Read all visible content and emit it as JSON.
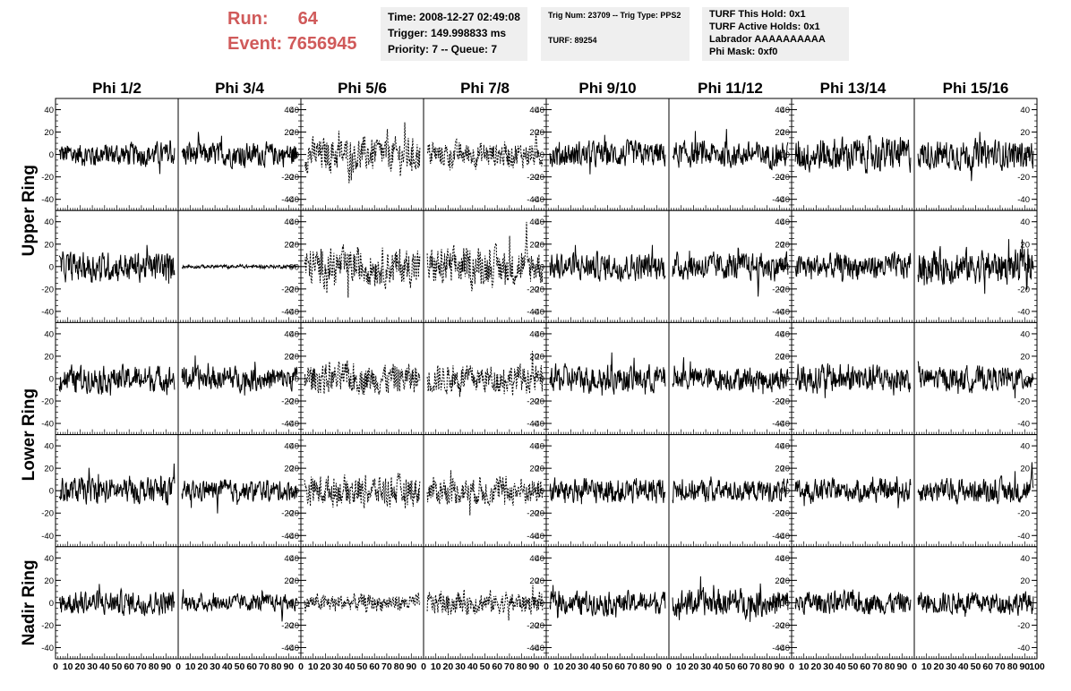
{
  "header": {
    "run_label": "Run:",
    "run_value": "64",
    "event_label": "Event:",
    "event_value": "7656945",
    "box1": {
      "time": "Time: 2008-12-27 02:49:08",
      "trigger": "Trigger: 149.998833 ms",
      "priority": "Priority: 7 -- Queue: 7"
    },
    "box2": {
      "trig": "Trig Num: 23709 -- Trig Type: PPS2",
      "turf": "TURF: 89254"
    },
    "box3": {
      "this_hold": "TURF This Hold: 0x1",
      "active_holds": "TURF Active Holds: 0x1",
      "labrador": "Labrador AAAAAAAAAA",
      "phi_mask": "Phi Mask: 0xf0"
    }
  },
  "colors": {
    "run_text": "#d05a5a",
    "box_bg": "#efefef",
    "trace": "#000000"
  },
  "chart_data": {
    "type": "line",
    "columns": [
      "Phi 1/2",
      "Phi 3/4",
      "Phi 5/6",
      "Phi 7/8",
      "Phi 9/10",
      "Phi 11/12",
      "Phi 13/14",
      "Phi 15/16"
    ],
    "rows": [
      "Upper Ring",
      "Lower Ring",
      "Nadir Ring"
    ],
    "panel_rows": 5,
    "ylim": [
      -50,
      50
    ],
    "xlim": [
      0,
      100
    ],
    "yticks": [
      "40",
      "20",
      "0",
      "-20",
      "-40"
    ],
    "xtick_labels": [
      "0",
      "10",
      "20",
      "30",
      "40",
      "50",
      "60",
      "70",
      "80",
      "90",
      "100"
    ],
    "axis_sides": [
      "left",
      "right",
      "left",
      "right",
      "left",
      "right",
      "left",
      "right"
    ],
    "panels": [
      {
        "row": 0,
        "col": 0,
        "amplitude": 14,
        "style": "solid"
      },
      {
        "row": 0,
        "col": 1,
        "amplitude": 14,
        "style": "solid"
      },
      {
        "row": 0,
        "col": 2,
        "amplitude": 20,
        "style": "dashed"
      },
      {
        "row": 0,
        "col": 3,
        "amplitude": 15,
        "style": "dashed"
      },
      {
        "row": 0,
        "col": 4,
        "amplitude": 15,
        "style": "solid"
      },
      {
        "row": 0,
        "col": 5,
        "amplitude": 15,
        "style": "solid"
      },
      {
        "row": 0,
        "col": 6,
        "amplitude": 20,
        "style": "solid"
      },
      {
        "row": 0,
        "col": 7,
        "amplitude": 17,
        "style": "solid"
      },
      {
        "row": 1,
        "col": 0,
        "amplitude": 17,
        "style": "solid"
      },
      {
        "row": 1,
        "col": 1,
        "amplitude": 2,
        "style": "solid"
      },
      {
        "row": 1,
        "col": 2,
        "amplitude": 22,
        "style": "dashed"
      },
      {
        "row": 1,
        "col": 3,
        "amplitude": 22,
        "style": "dashed"
      },
      {
        "row": 1,
        "col": 4,
        "amplitude": 16,
        "style": "solid"
      },
      {
        "row": 1,
        "col": 5,
        "amplitude": 16,
        "style": "solid"
      },
      {
        "row": 1,
        "col": 6,
        "amplitude": 15,
        "style": "solid"
      },
      {
        "row": 1,
        "col": 7,
        "amplitude": 20,
        "style": "solid"
      },
      {
        "row": 2,
        "col": 0,
        "amplitude": 15,
        "style": "solid"
      },
      {
        "row": 2,
        "col": 1,
        "amplitude": 14,
        "style": "solid"
      },
      {
        "row": 2,
        "col": 2,
        "amplitude": 18,
        "style": "dashed"
      },
      {
        "row": 2,
        "col": 3,
        "amplitude": 17,
        "style": "dashed"
      },
      {
        "row": 2,
        "col": 4,
        "amplitude": 16,
        "style": "solid"
      },
      {
        "row": 2,
        "col": 5,
        "amplitude": 14,
        "style": "solid"
      },
      {
        "row": 2,
        "col": 6,
        "amplitude": 17,
        "style": "solid"
      },
      {
        "row": 2,
        "col": 7,
        "amplitude": 14,
        "style": "solid"
      },
      {
        "row": 3,
        "col": 0,
        "amplitude": 15,
        "style": "solid"
      },
      {
        "row": 3,
        "col": 1,
        "amplitude": 12,
        "style": "solid"
      },
      {
        "row": 3,
        "col": 2,
        "amplitude": 18,
        "style": "dashed"
      },
      {
        "row": 3,
        "col": 3,
        "amplitude": 16,
        "style": "dashed"
      },
      {
        "row": 3,
        "col": 4,
        "amplitude": 15,
        "style": "solid"
      },
      {
        "row": 3,
        "col": 5,
        "amplitude": 13,
        "style": "solid"
      },
      {
        "row": 3,
        "col": 6,
        "amplitude": 13,
        "style": "solid"
      },
      {
        "row": 3,
        "col": 7,
        "amplitude": 14,
        "style": "solid"
      },
      {
        "row": 4,
        "col": 0,
        "amplitude": 14,
        "style": "solid"
      },
      {
        "row": 4,
        "col": 1,
        "amplitude": 10,
        "style": "solid"
      },
      {
        "row": 4,
        "col": 2,
        "amplitude": 10,
        "style": "dashed"
      },
      {
        "row": 4,
        "col": 3,
        "amplitude": 13,
        "style": "dashed"
      },
      {
        "row": 4,
        "col": 4,
        "amplitude": 13,
        "style": "solid"
      },
      {
        "row": 4,
        "col": 5,
        "amplitude": 16,
        "style": "solid"
      },
      {
        "row": 4,
        "col": 6,
        "amplitude": 13,
        "style": "solid"
      },
      {
        "row": 4,
        "col": 7,
        "amplitude": 13,
        "style": "solid"
      }
    ]
  }
}
